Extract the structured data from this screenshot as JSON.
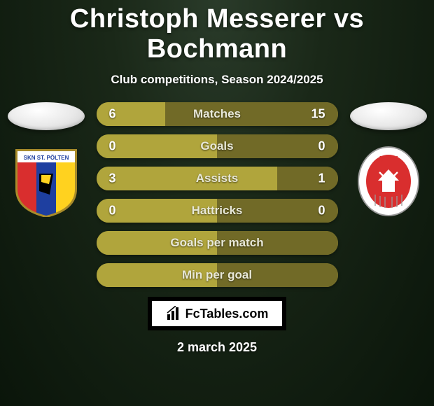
{
  "title": "Christoph Messerer vs Bochmann",
  "subtitle": "Club competitions, Season 2024/2025",
  "date": "2 march 2025",
  "branding": "FcTables.com",
  "colors": {
    "barBase": "#9a9033",
    "barLeft": "#b0a53c",
    "barRight": "#716a27",
    "text": "#ffffff"
  },
  "bars": [
    {
      "label": "Matches",
      "left": "6",
      "right": "15",
      "leftPct": 28.6,
      "rightPct": 71.4
    },
    {
      "label": "Goals",
      "left": "0",
      "right": "0",
      "leftPct": 50,
      "rightPct": 50
    },
    {
      "label": "Assists",
      "left": "3",
      "right": "1",
      "leftPct": 75,
      "rightPct": 25
    },
    {
      "label": "Hattricks",
      "left": "0",
      "right": "0",
      "leftPct": 50,
      "rightPct": 50
    },
    {
      "label": "Goals per match",
      "left": "",
      "right": "",
      "leftPct": 50,
      "rightPct": 50
    },
    {
      "label": "Min per goal",
      "left": "",
      "right": "",
      "leftPct": 50,
      "rightPct": 50
    }
  ],
  "crests": {
    "left": {
      "name": "SKN St. Pölten",
      "shieldBorder": "#a88b2a",
      "panels": [
        "#d92e2e",
        "#1e3fa0",
        "#ffd21f"
      ],
      "text": "SKN ST. PÖLTEN"
    },
    "right": {
      "name": "KSV",
      "circleOuter": "#ffffff",
      "circleInner": "#d92e2e",
      "text": "KSV"
    }
  }
}
